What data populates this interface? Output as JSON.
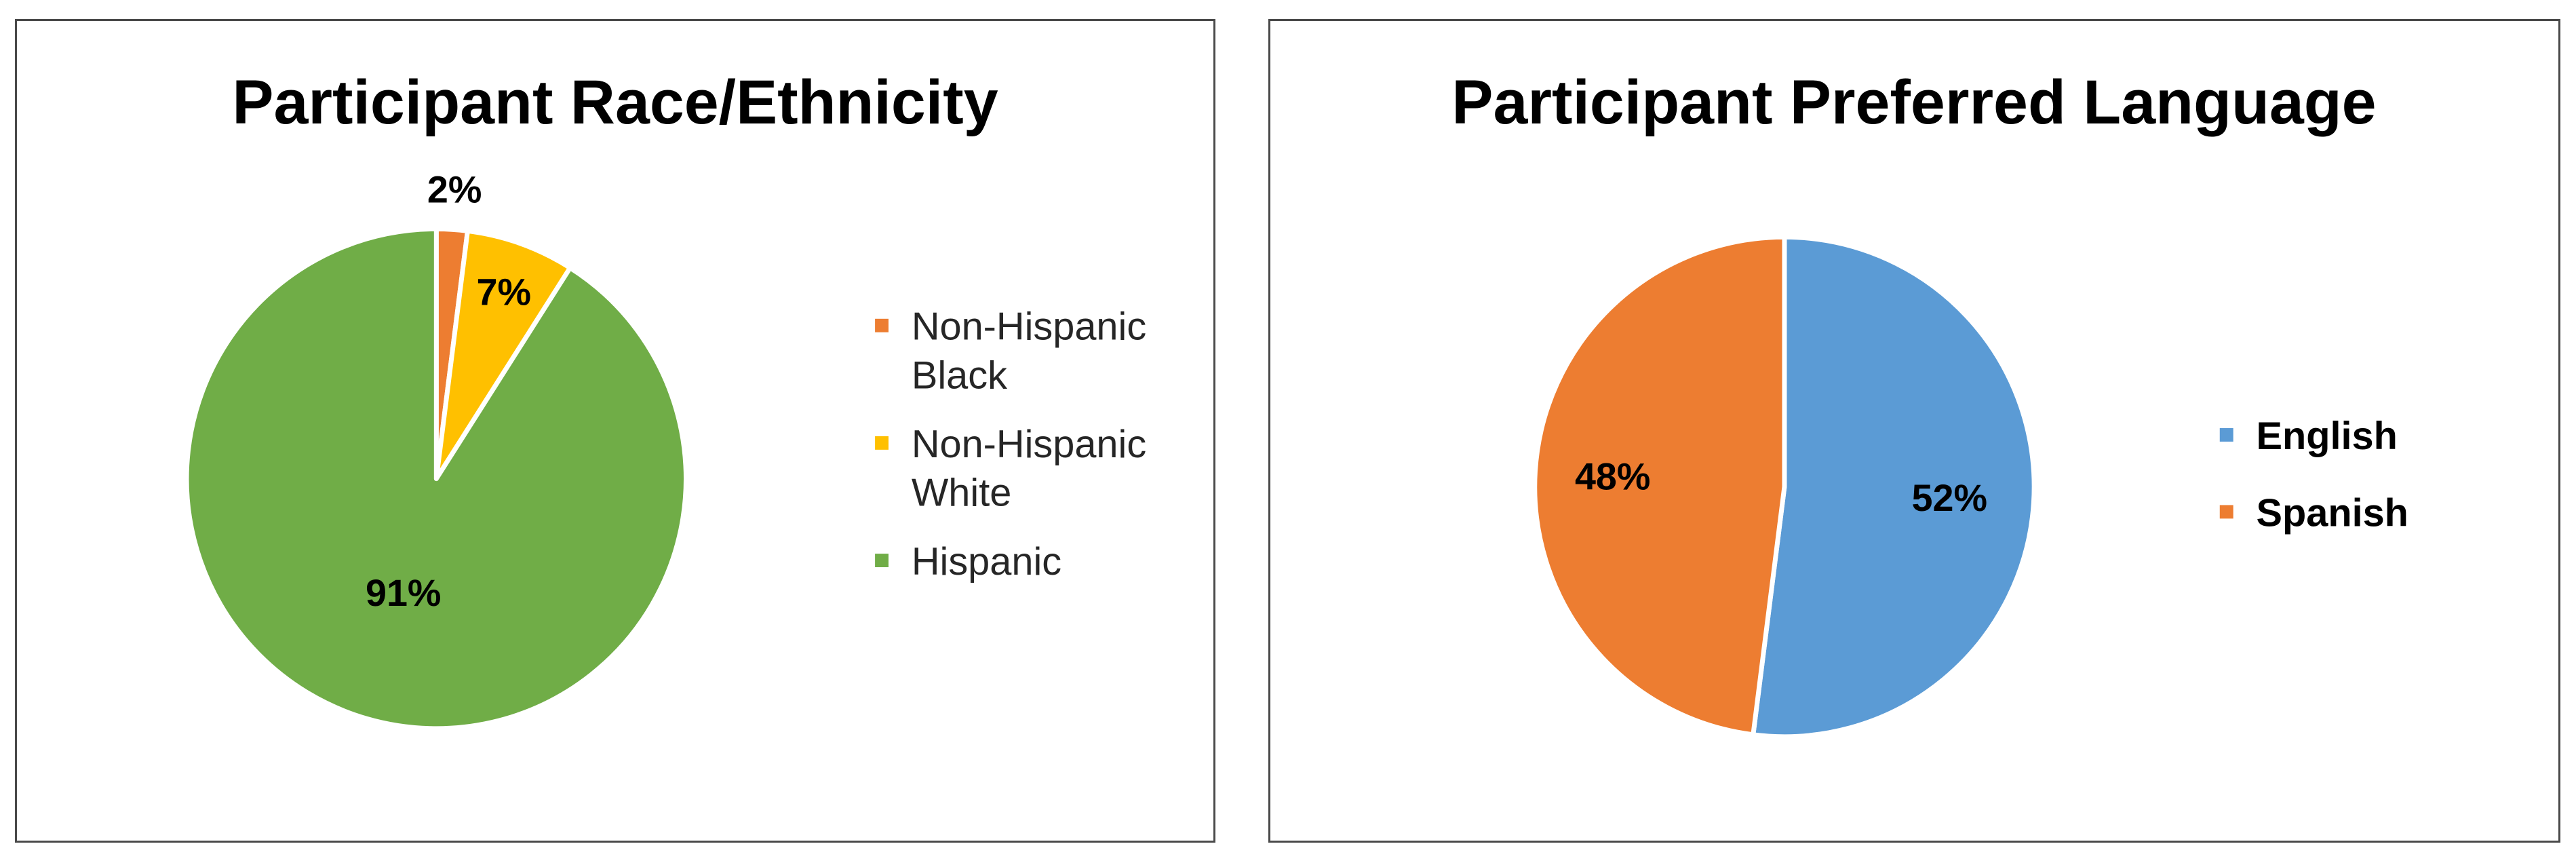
{
  "chart_data": [
    {
      "type": "pie",
      "title": "Participant Race/Ethnicity",
      "categories": [
        "Non-Hispanic Black",
        "Non-Hispanic White",
        "Hispanic"
      ],
      "values": [
        2,
        7,
        91
      ],
      "data_labels": [
        "2%",
        "7%",
        "91%"
      ],
      "colors": [
        "#ED7D31",
        "#FFC000",
        "#70AD47"
      ],
      "legend": {
        "placement": "right",
        "entries": [
          [
            "Non-Hispanic",
            "Black"
          ],
          [
            "Non-Hispanic",
            "White"
          ],
          [
            "Hispanic"
          ]
        ]
      }
    },
    {
      "type": "pie",
      "title": "Participant Preferred Language",
      "categories": [
        "English",
        "Spanish"
      ],
      "values": [
        52,
        48
      ],
      "data_labels": [
        "52%",
        "48%"
      ],
      "colors": [
        "#5B9BD5",
        "#ED7D31"
      ],
      "legend": {
        "placement": "right",
        "entries": [
          [
            "English"
          ],
          [
            "Spanish"
          ]
        ]
      }
    }
  ]
}
